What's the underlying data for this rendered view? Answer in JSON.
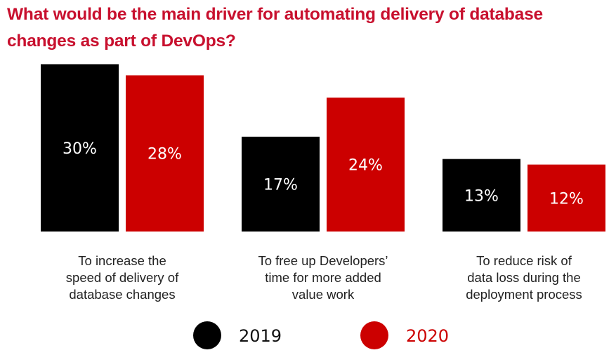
{
  "title_line1": "What would be the main driver for automating delivery of database",
  "title_line2": "changes as part of DevOps?",
  "colors": {
    "title": "#c8102e",
    "series_2019": "#000000",
    "series_2020": "#cc0000",
    "bar_text": "#ffffff",
    "category_text": "#222222"
  },
  "chart_data": {
    "type": "bar",
    "title": "What would be the main driver for automating delivery of database changes as part of DevOps?",
    "xlabel": "",
    "ylabel": "",
    "ylim": [
      0,
      30
    ],
    "grid": false,
    "legend_position": "bottom",
    "categories": [
      [
        "To increase the",
        "speed of delivery of",
        "database changes"
      ],
      [
        "To free up Developers’",
        "time for more added",
        "value work"
      ],
      [
        "To reduce risk of",
        "data loss during the",
        "deployment process"
      ]
    ],
    "series": [
      {
        "name": "2019",
        "color": "#000000",
        "values": [
          30,
          17,
          13
        ],
        "labels": [
          "30%",
          "17%",
          "13%"
        ]
      },
      {
        "name": "2020",
        "color": "#cc0000",
        "values": [
          28,
          24,
          12
        ],
        "labels": [
          "28%",
          "24%",
          "12%"
        ]
      }
    ]
  }
}
